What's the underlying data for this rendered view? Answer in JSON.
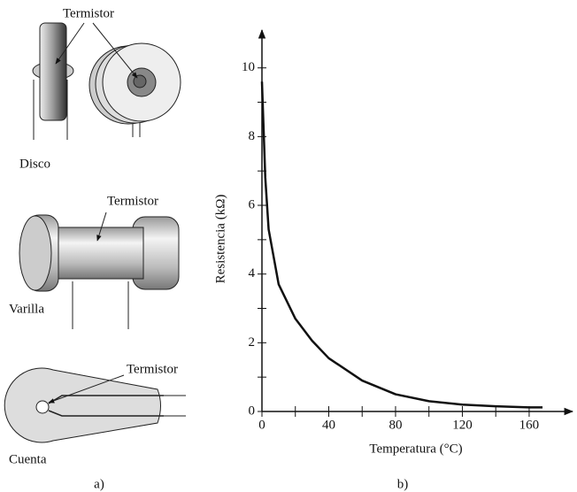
{
  "diagram": {
    "disc_label": "Disco",
    "disc_thermistor": "Termistor",
    "rod_label": "Varilla",
    "rod_thermistor": "Termistor",
    "bead_label": "Cuenta",
    "bead_thermistor": "Termistor",
    "caption": "a)"
  },
  "chart_data": {
    "type": "line",
    "caption": "b)",
    "xlabel": "Temperatura (°C)",
    "ylabel": "Resistencia (kΩ)",
    "x": [
      0,
      2,
      4,
      10,
      20,
      30,
      40,
      60,
      80,
      100,
      120,
      140,
      160,
      168
    ],
    "series": [
      {
        "color": "#111111",
        "values": [
          9.6,
          6.8,
          5.3,
          3.7,
          2.7,
          2.06,
          1.55,
          0.9,
          0.5,
          0.3,
          0.2,
          0.15,
          0.12,
          0.12
        ]
      }
    ],
    "xlim": [
      0,
      186
    ],
    "ylim": [
      0,
      11.1
    ],
    "xticks": [
      0,
      40,
      80,
      120,
      160
    ],
    "yticks": [
      0,
      2,
      4,
      6,
      8,
      10
    ],
    "xminor": [
      20,
      60,
      100,
      140
    ],
    "yminor": [
      1,
      3,
      5,
      7,
      9
    ]
  }
}
